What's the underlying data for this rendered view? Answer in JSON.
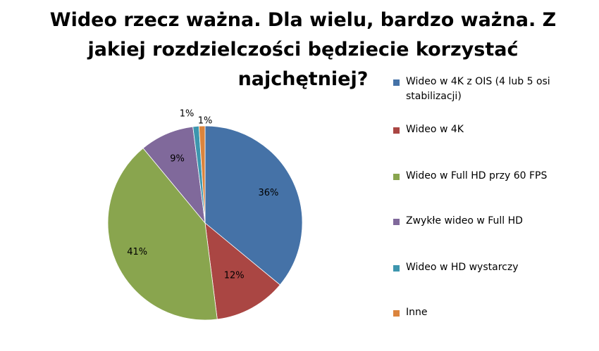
{
  "title_lines": [
    "Wideo rzecz ważna. Dla wielu, bardzo ważna. Z",
    "jakiej rozdzielczości będziecie korzystać",
    "najchętniej?"
  ],
  "chart_data": {
    "type": "pie",
    "title": "Wideo rzecz ważna. Dla wielu, bardzo ważna. Z jakiej rozdzielczości będziecie korzystać najchętniej?",
    "unit": "%",
    "legend_position": "right",
    "slices": [
      {
        "label": "Wideo w 4K z OIS (4 lub 5 osi stabilizacji)",
        "value": 36,
        "display": "36%",
        "color": "#4572A7"
      },
      {
        "label": "Wideo w 4K",
        "value": 12,
        "display": "12%",
        "color": "#AA4643"
      },
      {
        "label": "Wideo w Full HD przy 60 FPS",
        "value": 41,
        "display": "41%",
        "color": "#89A54E"
      },
      {
        "label": "Zwykłe wideo w Full HD",
        "value": 9,
        "display": "9%",
        "color": "#80699B"
      },
      {
        "label": "Wideo w HD wystarczy",
        "value": 1,
        "display": "1%",
        "color": "#3D96AE"
      },
      {
        "label": "Inne",
        "value": 1,
        "display": "1%",
        "color": "#DB843D"
      }
    ]
  }
}
